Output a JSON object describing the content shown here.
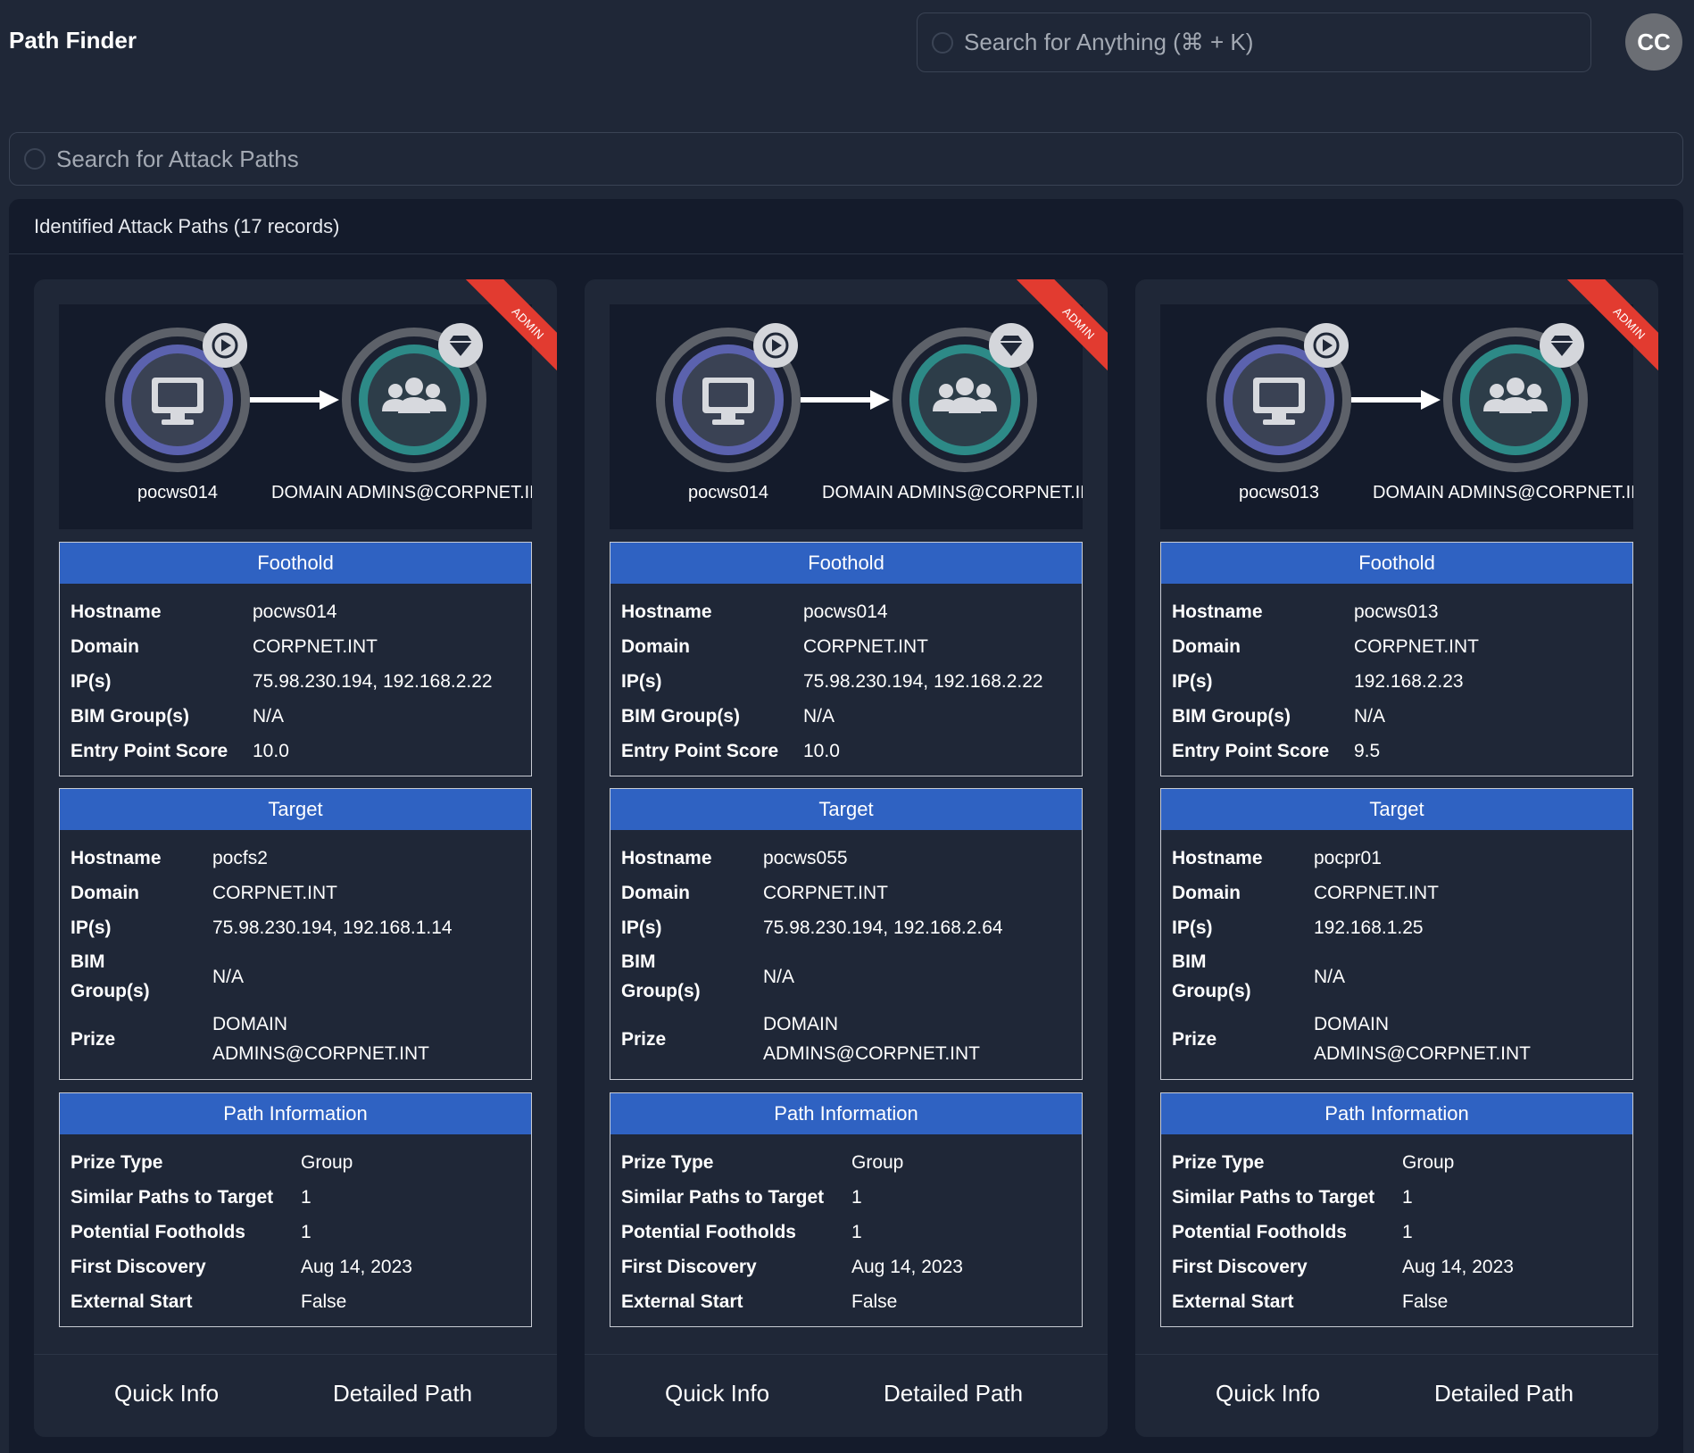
{
  "header": {
    "title": "Path Finder",
    "global_search_placeholder": "Search for Anything (⌘ + K)",
    "avatar_initials": "CC"
  },
  "path_search": {
    "placeholder": "Search for Attack Paths"
  },
  "results": {
    "title": "Identified Attack Paths (17 records)",
    "cards": [
      {
        "source_label": "pocws014",
        "target_label": "DOMAIN ADMINS@CORPNET.INT",
        "ribbon": "ADMIN",
        "foothold": {
          "title": "Foothold",
          "hostname_label": "Hostname",
          "hostname": "pocws014",
          "domain_label": "Domain",
          "domain": "CORPNET.INT",
          "ips_label": "IP(s)",
          "ips": "75.98.230.194, 192.168.2.22",
          "bim_label": "BIM Group(s)",
          "bim": "N/A",
          "score_label": "Entry Point Score",
          "score": "10.0"
        },
        "target": {
          "title": "Target",
          "hostname_label": "Hostname",
          "hostname": "pocfs2",
          "domain_label": "Domain",
          "domain": "CORPNET.INT",
          "ips_label": "IP(s)",
          "ips": "75.98.230.194, 192.168.1.14",
          "bim_label": "BIM Group(s)",
          "bim": "N/A",
          "prize_label": "Prize",
          "prize": "DOMAIN ADMINS@CORPNET.INT"
        },
        "path": {
          "title": "Path Information",
          "prize_type_label": "Prize Type",
          "prize_type": "Group",
          "similar_label": "Similar Paths to Target",
          "similar": "1",
          "footholds_label": "Potential Footholds",
          "footholds": "1",
          "discovery_label": "First Discovery",
          "discovery": "Aug 14, 2023",
          "external_label": "External Start",
          "external": "False"
        },
        "quick_info": "Quick Info",
        "detailed_path": "Detailed Path"
      },
      {
        "source_label": "pocws014",
        "target_label": "DOMAIN ADMINS@CORPNET.INT",
        "ribbon": "ADMIN",
        "foothold": {
          "title": "Foothold",
          "hostname_label": "Hostname",
          "hostname": "pocws014",
          "domain_label": "Domain",
          "domain": "CORPNET.INT",
          "ips_label": "IP(s)",
          "ips": "75.98.230.194, 192.168.2.22",
          "bim_label": "BIM Group(s)",
          "bim": "N/A",
          "score_label": "Entry Point Score",
          "score": "10.0"
        },
        "target": {
          "title": "Target",
          "hostname_label": "Hostname",
          "hostname": "pocws055",
          "domain_label": "Domain",
          "domain": "CORPNET.INT",
          "ips_label": "IP(s)",
          "ips": "75.98.230.194, 192.168.2.64",
          "bim_label": "BIM Group(s)",
          "bim": "N/A",
          "prize_label": "Prize",
          "prize": "DOMAIN ADMINS@CORPNET.INT"
        },
        "path": {
          "title": "Path Information",
          "prize_type_label": "Prize Type",
          "prize_type": "Group",
          "similar_label": "Similar Paths to Target",
          "similar": "1",
          "footholds_label": "Potential Footholds",
          "footholds": "1",
          "discovery_label": "First Discovery",
          "discovery": "Aug 14, 2023",
          "external_label": "External Start",
          "external": "False"
        },
        "quick_info": "Quick Info",
        "detailed_path": "Detailed Path"
      },
      {
        "source_label": "pocws013",
        "target_label": "DOMAIN ADMINS@CORPNET.INT",
        "ribbon": "ADMIN",
        "foothold": {
          "title": "Foothold",
          "hostname_label": "Hostname",
          "hostname": "pocws013",
          "domain_label": "Domain",
          "domain": "CORPNET.INT",
          "ips_label": "IP(s)",
          "ips": "192.168.2.23",
          "bim_label": "BIM Group(s)",
          "bim": "N/A",
          "score_label": "Entry Point Score",
          "score": "9.5"
        },
        "target": {
          "title": "Target",
          "hostname_label": "Hostname",
          "hostname": "pocpr01",
          "domain_label": "Domain",
          "domain": "CORPNET.INT",
          "ips_label": "IP(s)",
          "ips": "192.168.1.25",
          "bim_label": "BIM Group(s)",
          "bim": "N/A",
          "prize_label": "Prize",
          "prize": "DOMAIN ADMINS@CORPNET.INT"
        },
        "path": {
          "title": "Path Information",
          "prize_type_label": "Prize Type",
          "prize_type": "Group",
          "similar_label": "Similar Paths to Target",
          "similar": "1",
          "footholds_label": "Potential Footholds",
          "footholds": "1",
          "discovery_label": "First Discovery",
          "discovery": "Aug 14, 2023",
          "external_label": "External Start",
          "external": "False"
        },
        "quick_info": "Quick Info",
        "detailed_path": "Detailed Path"
      }
    ]
  },
  "icons": {
    "source_node": "computer-icon",
    "target_node": "group-icon",
    "source_badge": "play-icon",
    "target_badge": "diamond-icon"
  },
  "colors": {
    "background": "#1f2737",
    "panel": "#141b2b",
    "section_header": "#2f62c2",
    "ribbon": "#e23b30",
    "source_ring": "#5b62ae",
    "target_ring": "#2d8a87"
  }
}
